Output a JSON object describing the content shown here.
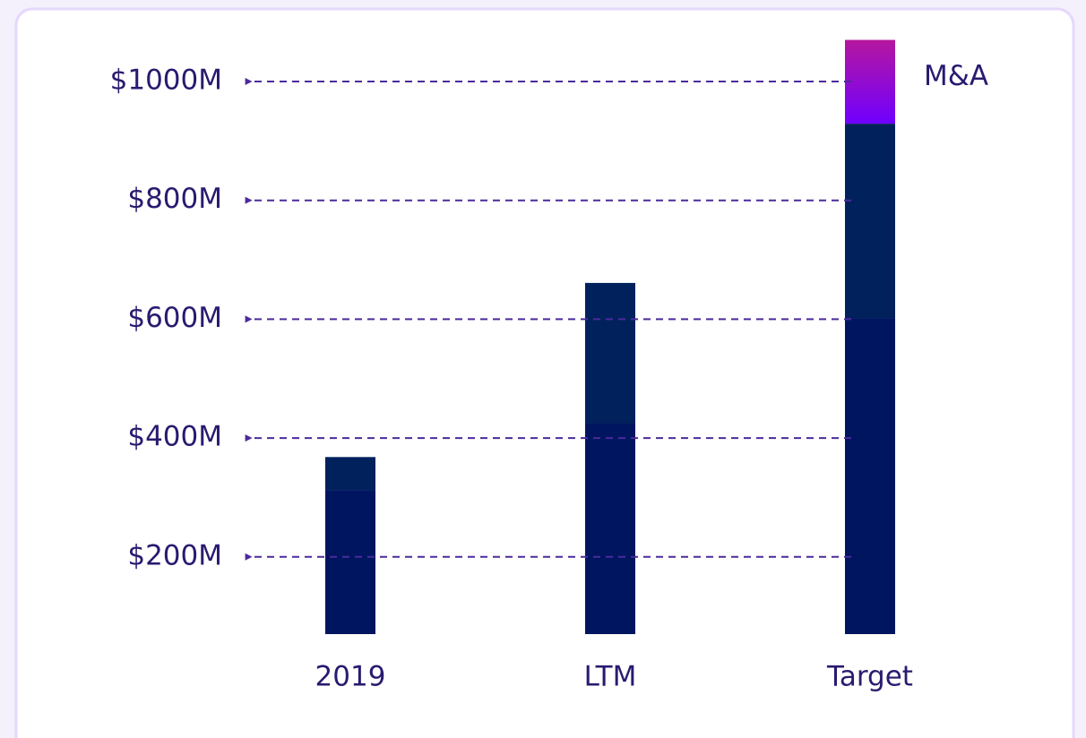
{
  "chart_data": {
    "type": "stacked_bar",
    "categories": [
      "2019",
      "LTM",
      "Target"
    ],
    "series": [
      {
        "color": "#00155f",
        "values": [
          242,
          355,
          532
        ]
      },
      {
        "color": "#00215c",
        "values": [
          56,
          236,
          327
        ]
      },
      {
        "name": "M&A",
        "color": "#8a0cf0",
        "gradient": [
          "#b5179e",
          "#7000ff"
        ],
        "values": [
          null,
          null,
          141
        ]
      }
    ],
    "ylim": [
      70,
      1000
    ],
    "yticks": [
      {
        "value": 200,
        "label": "$200M"
      },
      {
        "value": 400,
        "label": "$400M"
      },
      {
        "value": 600,
        "label": "$600M"
      },
      {
        "value": 800,
        "label": "$800M"
      },
      {
        "value": 1000,
        "label": "$1000M"
      }
    ],
    "grid": true,
    "grid_color": "#4b2a9c"
  }
}
